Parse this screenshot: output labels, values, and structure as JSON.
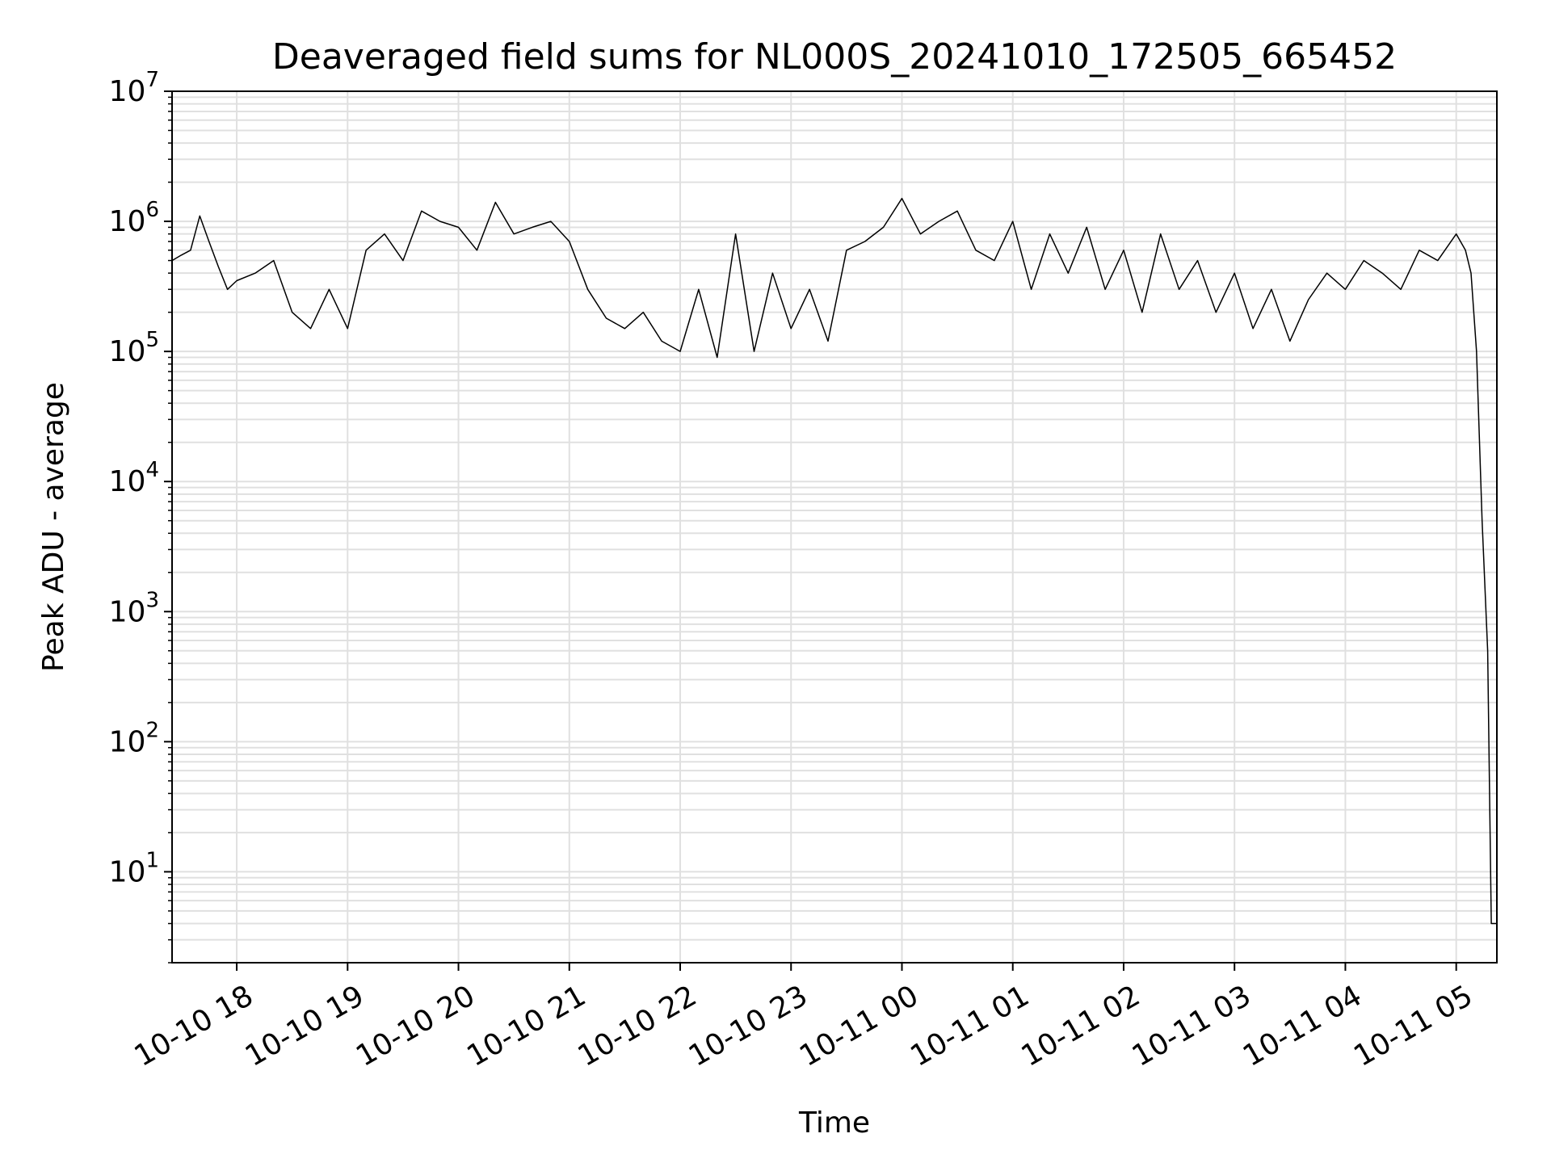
{
  "chart_data": {
    "type": "line",
    "title": "Deaveraged field sums for NL000S_20241010_172505_665452",
    "xlabel": "Time",
    "ylabel": "Peak ADU - average",
    "y_scale": "log",
    "ylim": [
      2,
      10000000
    ],
    "xlim": [
      "2024-10-10T17:25",
      "2024-10-11T05:22"
    ],
    "x_ticks": [
      {
        "t": "2024-10-10T18:00",
        "label": "10-10 18"
      },
      {
        "t": "2024-10-10T19:00",
        "label": "10-10 19"
      },
      {
        "t": "2024-10-10T20:00",
        "label": "10-10 20"
      },
      {
        "t": "2024-10-10T21:00",
        "label": "10-10 21"
      },
      {
        "t": "2024-10-10T22:00",
        "label": "10-10 22"
      },
      {
        "t": "2024-10-10T23:00",
        "label": "10-10 23"
      },
      {
        "t": "2024-10-11T00:00",
        "label": "10-11 00"
      },
      {
        "t": "2024-10-11T01:00",
        "label": "10-11 01"
      },
      {
        "t": "2024-10-11T02:00",
        "label": "10-11 02"
      },
      {
        "t": "2024-10-11T03:00",
        "label": "10-11 03"
      },
      {
        "t": "2024-10-11T04:00",
        "label": "10-11 04"
      },
      {
        "t": "2024-10-11T05:00",
        "label": "10-11 05"
      }
    ],
    "y_ticks": [
      {
        "value": 10,
        "base": "10",
        "exp": "1"
      },
      {
        "value": 100,
        "base": "10",
        "exp": "2"
      },
      {
        "value": 1000,
        "base": "10",
        "exp": "3"
      },
      {
        "value": 10000,
        "base": "10",
        "exp": "4"
      },
      {
        "value": 100000,
        "base": "10",
        "exp": "5"
      },
      {
        "value": 1000000,
        "base": "10",
        "exp": "6"
      },
      {
        "value": 10000000,
        "base": "10",
        "exp": "7"
      }
    ],
    "grid": true,
    "line_color": "#000000",
    "grid_color": "#e0e0e0",
    "series": [
      {
        "x": [
          "2024-10-10T17:25",
          "2024-10-10T17:30",
          "2024-10-10T17:35",
          "2024-10-10T17:40",
          "2024-10-10T17:45",
          "2024-10-10T17:50",
          "2024-10-10T17:55",
          "2024-10-10T18:00",
          "2024-10-10T18:10",
          "2024-10-10T18:20",
          "2024-10-10T18:30",
          "2024-10-10T18:40",
          "2024-10-10T18:50",
          "2024-10-10T19:00",
          "2024-10-10T19:10",
          "2024-10-10T19:20",
          "2024-10-10T19:30",
          "2024-10-10T19:40",
          "2024-10-10T19:50",
          "2024-10-10T20:00",
          "2024-10-10T20:10",
          "2024-10-10T20:20",
          "2024-10-10T20:30",
          "2024-10-10T20:40",
          "2024-10-10T20:50",
          "2024-10-10T21:00",
          "2024-10-10T21:10",
          "2024-10-10T21:20",
          "2024-10-10T21:30",
          "2024-10-10T21:40",
          "2024-10-10T21:50",
          "2024-10-10T22:00",
          "2024-10-10T22:10",
          "2024-10-10T22:20",
          "2024-10-10T22:30",
          "2024-10-10T22:40",
          "2024-10-10T22:50",
          "2024-10-10T23:00",
          "2024-10-10T23:10",
          "2024-10-10T23:20",
          "2024-10-10T23:30",
          "2024-10-10T23:40",
          "2024-10-10T23:50",
          "2024-10-11T00:00",
          "2024-10-11T00:10",
          "2024-10-11T00:20",
          "2024-10-11T00:30",
          "2024-10-11T00:40",
          "2024-10-11T00:50",
          "2024-10-11T01:00",
          "2024-10-11T01:10",
          "2024-10-11T01:20",
          "2024-10-11T01:30",
          "2024-10-11T01:40",
          "2024-10-11T01:50",
          "2024-10-11T02:00",
          "2024-10-11T02:10",
          "2024-10-11T02:20",
          "2024-10-11T02:30",
          "2024-10-11T02:40",
          "2024-10-11T02:50",
          "2024-10-11T03:00",
          "2024-10-11T03:10",
          "2024-10-11T03:20",
          "2024-10-11T03:30",
          "2024-10-11T03:40",
          "2024-10-11T03:50",
          "2024-10-11T04:00",
          "2024-10-11T04:10",
          "2024-10-11T04:20",
          "2024-10-11T04:30",
          "2024-10-11T04:40",
          "2024-10-11T04:50",
          "2024-10-11T05:00",
          "2024-10-11T05:05",
          "2024-10-11T05:08",
          "2024-10-11T05:11",
          "2024-10-11T05:14",
          "2024-10-11T05:17",
          "2024-10-11T05:19",
          "2024-10-11T05:22"
        ],
        "y": [
          500000,
          550000,
          600000,
          1100000,
          700000,
          450000,
          300000,
          350000,
          400000,
          500000,
          200000,
          150000,
          300000,
          150000,
          600000,
          800000,
          500000,
          1200000,
          1000000,
          900000,
          600000,
          1400000,
          800000,
          900000,
          1000000,
          700000,
          300000,
          180000,
          150000,
          200000,
          120000,
          100000,
          300000,
          90000,
          800000,
          100000,
          400000,
          150000,
          300000,
          120000,
          600000,
          700000,
          900000,
          1500000,
          800000,
          1000000,
          1200000,
          600000,
          500000,
          1000000,
          300000,
          800000,
          400000,
          900000,
          300000,
          600000,
          200000,
          800000,
          300000,
          500000,
          200000,
          400000,
          150000,
          300000,
          120000,
          250000,
          400000,
          300000,
          500000,
          400000,
          300000,
          600000,
          500000,
          800000,
          600000,
          400000,
          100000,
          5000,
          500,
          4,
          4
        ]
      }
    ]
  }
}
